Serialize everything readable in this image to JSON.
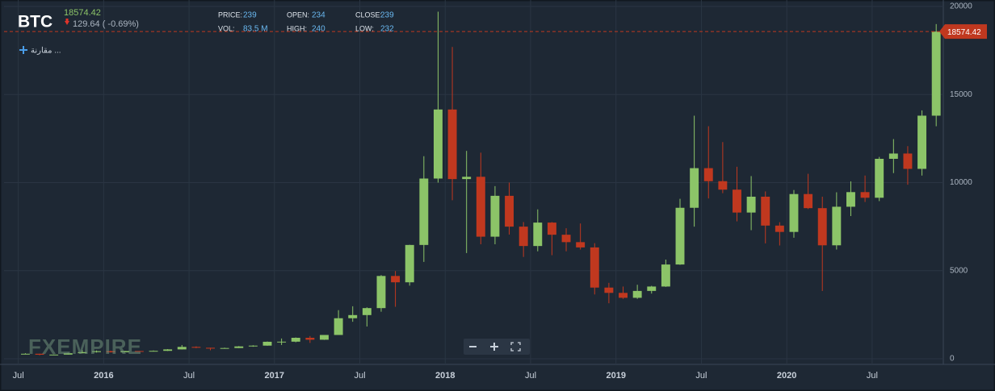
{
  "chart_data": {
    "type": "candlestick",
    "title": "BTC",
    "last_price": 18574.42,
    "change_label": "129.64 ( -0.69%)",
    "compare_label": "مقارنة ...",
    "watermark": "FXEMPIRE",
    "stats": [
      {
        "label": "PRICE:",
        "value": "239"
      },
      {
        "label": "OPEN:",
        "value": "234"
      },
      {
        "label": "CLOSE:",
        "value": "239"
      },
      {
        "label": "VOL:",
        "value": "83.5 M"
      },
      {
        "label": "HIGH:",
        "value": "240"
      },
      {
        "label": "LOW:",
        "value": "232"
      }
    ],
    "up_color": "#8cc468",
    "down_color": "#c0381f",
    "price_color": "#c0381f",
    "grid": true,
    "xlim": [
      "2015-06",
      "2020-12"
    ],
    "xticks": [
      {
        "value": "2015-07",
        "label": "Jul"
      },
      2016,
      {
        "value": "2016-07",
        "label": "Jul"
      },
      2017,
      {
        "value": "2017-07",
        "label": "Jul"
      },
      2018,
      {
        "value": "2018-07",
        "label": "Jul"
      },
      2019,
      {
        "value": "2019-07",
        "label": "Jul"
      },
      2020,
      {
        "value": "2020-07",
        "label": "Jul"
      }
    ],
    "ylim": [
      0,
      20000
    ],
    "yticks": [
      0,
      5000,
      10000,
      15000,
      20000
    ],
    "x": [
      "2015-07",
      "2015-08",
      "2015-09",
      "2015-10",
      "2015-11",
      "2015-12",
      "2016-01",
      "2016-02",
      "2016-03",
      "2016-04",
      "2016-05",
      "2016-06",
      "2016-07",
      "2016-08",
      "2016-09",
      "2016-10",
      "2016-11",
      "2016-12",
      "2017-01",
      "2017-02",
      "2017-03",
      "2017-04",
      "2017-05",
      "2017-06",
      "2017-07",
      "2017-08",
      "2017-09",
      "2017-10",
      "2017-11",
      "2017-12",
      "2018-01",
      "2018-02",
      "2018-03",
      "2018-04",
      "2018-05",
      "2018-06",
      "2018-07",
      "2018-08",
      "2018-09",
      "2018-10",
      "2018-11",
      "2018-12",
      "2019-01",
      "2019-02",
      "2019-03",
      "2019-04",
      "2019-05",
      "2019-06",
      "2019-07",
      "2019-08",
      "2019-09",
      "2019-10",
      "2019-11",
      "2019-12",
      "2020-01",
      "2020-02",
      "2020-03",
      "2020-04",
      "2020-05",
      "2020-06",
      "2020-07",
      "2020-08",
      "2020-09",
      "2020-10",
      "2020-11"
    ],
    "open": [
      263,
      284,
      230,
      236,
      314,
      378,
      430,
      368,
      437,
      416,
      448,
      531,
      673,
      624,
      575,
      609,
      700,
      745,
      964,
      970,
      1190,
      1080,
      1350,
      2300,
      2480,
      2875,
      4700,
      4340,
      6460,
      10230,
      14150,
      10200,
      10330,
      6930,
      9250,
      7500,
      6400,
      7730,
      7040,
      6620,
      6320,
      4040,
      3740,
      3460,
      3850,
      4100,
      5350,
      8570,
      10820,
      10080,
      9600,
      8300,
      9200,
      7560,
      7200,
      9350,
      8550,
      6440,
      8630,
      9460,
      9140,
      11350,
      11650,
      10780,
      13800
    ],
    "high": [
      315,
      285,
      245,
      335,
      495,
      470,
      460,
      445,
      440,
      470,
      550,
      780,
      705,
      625,
      630,
      720,
      765,
      980,
      1150,
      1210,
      1290,
      1350,
      2760,
      2980,
      2920,
      4750,
      4980,
      6470,
      11500,
      19700,
      17700,
      11800,
      11700,
      9800,
      10000,
      7760,
      8480,
      7760,
      7410,
      7680,
      6560,
      4310,
      4100,
      4200,
      4140,
      5630,
      9080,
      13800,
      13200,
      12300,
      10900,
      10370,
      9500,
      7750,
      9580,
      10500,
      9200,
      9450,
      10070,
      10400,
      11460,
      12470,
      12070,
      14100,
      19000
    ],
    "low": [
      255,
      199,
      226,
      236,
      305,
      350,
      355,
      365,
      395,
      412,
      440,
      525,
      600,
      480,
      570,
      605,
      680,
      740,
      780,
      935,
      900,
      1070,
      1350,
      2100,
      1830,
      2670,
      2950,
      4150,
      5500,
      10000,
      9000,
      6000,
      6500,
      6500,
      7050,
      5780,
      6100,
      5880,
      6100,
      6200,
      3650,
      3150,
      3400,
      3400,
      3700,
      4080,
      5330,
      7500,
      9100,
      9400,
      7800,
      7300,
      6550,
      6430,
      6870,
      8500,
      3850,
      6200,
      8100,
      8900,
      8950,
      10540,
      9880,
      10400,
      13200
    ],
    "close": [
      284,
      230,
      236,
      314,
      378,
      430,
      368,
      437,
      416,
      448,
      531,
      673,
      624,
      575,
      609,
      700,
      745,
      964,
      970,
      1190,
      1080,
      1350,
      2300,
      2480,
      2875,
      4700,
      4340,
      6460,
      10230,
      14150,
      10200,
      10330,
      6930,
      9250,
      7500,
      6400,
      7730,
      7040,
      6620,
      6320,
      4040,
      3740,
      3460,
      3850,
      4100,
      5350,
      8570,
      10820,
      10080,
      9600,
      8300,
      9200,
      7560,
      7200,
      9350,
      8550,
      6440,
      8630,
      9460,
      9140,
      11350,
      11650,
      10780,
      13800,
      18574.42
    ]
  }
}
